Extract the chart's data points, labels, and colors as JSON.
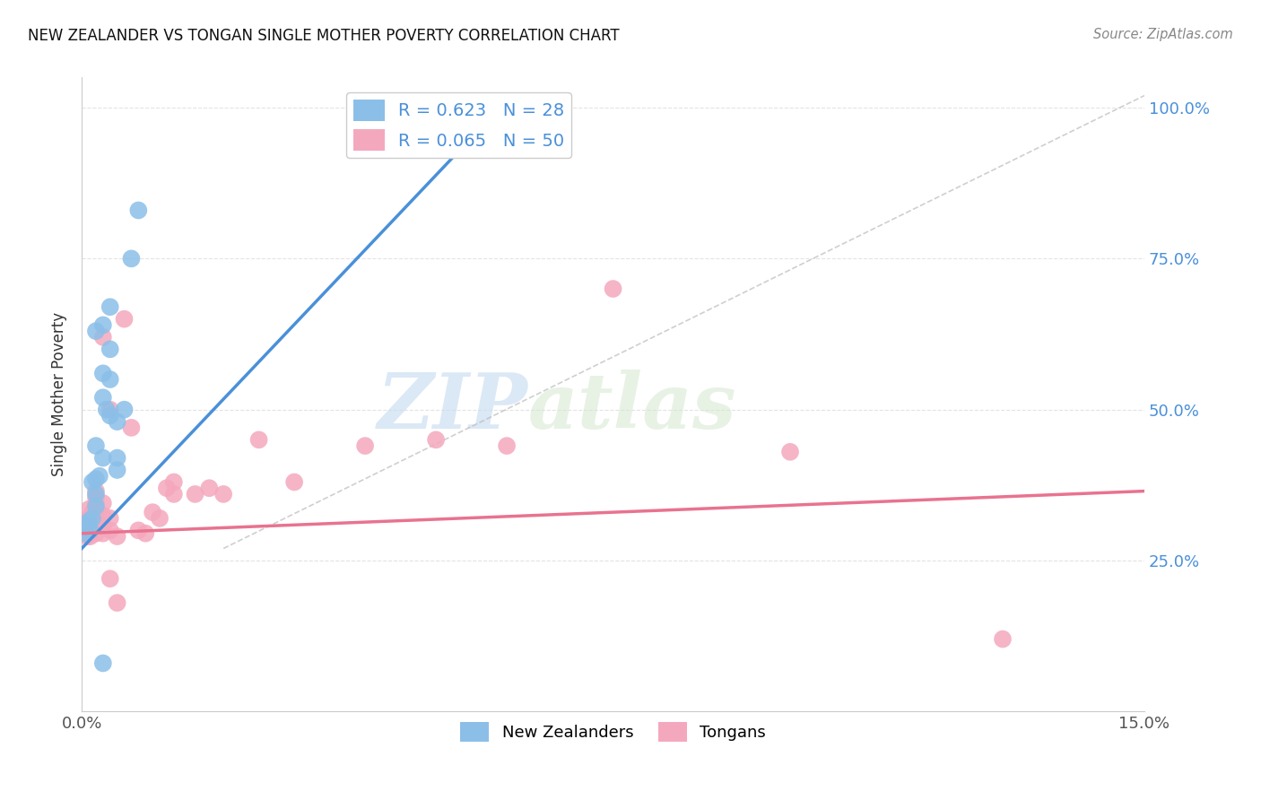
{
  "title": "NEW ZEALANDER VS TONGAN SINGLE MOTHER POVERTY CORRELATION CHART",
  "source": "Source: ZipAtlas.com",
  "ylabel": "Single Mother Poverty",
  "y_ticks": [
    "25.0%",
    "50.0%",
    "75.0%",
    "100.0%"
  ],
  "y_tick_vals": [
    0.25,
    0.5,
    0.75,
    1.0
  ],
  "x_lim": [
    0.0,
    0.15
  ],
  "y_lim": [
    0.0,
    1.05
  ],
  "watermark_zip": "ZIP",
  "watermark_atlas": "atlas",
  "legend_nz_R": "R = 0.623",
  "legend_nz_N": "N = 28",
  "legend_tg_R": "R = 0.065",
  "legend_tg_N": "N = 50",
  "nz_color": "#8BBFE8",
  "tg_color": "#F4A8BE",
  "nz_line_color": "#4A90D9",
  "tg_line_color": "#E8738F",
  "diagonal_color": "#BBBBBB",
  "background_color": "#FFFFFF",
  "nz_points": [
    [
      0.0005,
      0.295
    ],
    [
      0.001,
      0.31
    ],
    [
      0.001,
      0.315
    ],
    [
      0.0012,
      0.3
    ],
    [
      0.0015,
      0.32
    ],
    [
      0.0015,
      0.38
    ],
    [
      0.002,
      0.34
    ],
    [
      0.002,
      0.36
    ],
    [
      0.002,
      0.385
    ],
    [
      0.002,
      0.44
    ],
    [
      0.0025,
      0.39
    ],
    [
      0.003,
      0.42
    ],
    [
      0.003,
      0.52
    ],
    [
      0.003,
      0.56
    ],
    [
      0.003,
      0.64
    ],
    [
      0.0035,
      0.5
    ],
    [
      0.004,
      0.49
    ],
    [
      0.004,
      0.55
    ],
    [
      0.004,
      0.6
    ],
    [
      0.004,
      0.67
    ],
    [
      0.005,
      0.48
    ],
    [
      0.005,
      0.42
    ],
    [
      0.005,
      0.4
    ],
    [
      0.006,
      0.5
    ],
    [
      0.007,
      0.75
    ],
    [
      0.008,
      0.83
    ],
    [
      0.003,
      0.08
    ],
    [
      0.002,
      0.63
    ]
  ],
  "tg_points": [
    [
      0.0004,
      0.295
    ],
    [
      0.0005,
      0.3
    ],
    [
      0.0005,
      0.31
    ],
    [
      0.0008,
      0.29
    ],
    [
      0.001,
      0.295
    ],
    [
      0.001,
      0.305
    ],
    [
      0.001,
      0.32
    ],
    [
      0.001,
      0.335
    ],
    [
      0.0012,
      0.29
    ],
    [
      0.0015,
      0.3
    ],
    [
      0.0015,
      0.315
    ],
    [
      0.0015,
      0.33
    ],
    [
      0.002,
      0.295
    ],
    [
      0.002,
      0.305
    ],
    [
      0.002,
      0.32
    ],
    [
      0.002,
      0.335
    ],
    [
      0.002,
      0.345
    ],
    [
      0.002,
      0.355
    ],
    [
      0.002,
      0.365
    ],
    [
      0.003,
      0.295
    ],
    [
      0.003,
      0.305
    ],
    [
      0.003,
      0.325
    ],
    [
      0.003,
      0.345
    ],
    [
      0.003,
      0.62
    ],
    [
      0.004,
      0.5
    ],
    [
      0.004,
      0.32
    ],
    [
      0.004,
      0.3
    ],
    [
      0.004,
      0.22
    ],
    [
      0.005,
      0.29
    ],
    [
      0.005,
      0.18
    ],
    [
      0.006,
      0.65
    ],
    [
      0.007,
      0.47
    ],
    [
      0.008,
      0.3
    ],
    [
      0.009,
      0.295
    ],
    [
      0.01,
      0.33
    ],
    [
      0.011,
      0.32
    ],
    [
      0.012,
      0.37
    ],
    [
      0.013,
      0.36
    ],
    [
      0.013,
      0.38
    ],
    [
      0.016,
      0.36
    ],
    [
      0.018,
      0.37
    ],
    [
      0.02,
      0.36
    ],
    [
      0.025,
      0.45
    ],
    [
      0.03,
      0.38
    ],
    [
      0.04,
      0.44
    ],
    [
      0.05,
      0.45
    ],
    [
      0.06,
      0.44
    ],
    [
      0.075,
      0.7
    ],
    [
      0.1,
      0.43
    ],
    [
      0.13,
      0.12
    ]
  ],
  "nz_line_pts": [
    [
      0.0,
      0.27
    ],
    [
      0.055,
      0.95
    ]
  ],
  "tg_line_pts": [
    [
      0.0,
      0.295
    ],
    [
      0.15,
      0.365
    ]
  ]
}
